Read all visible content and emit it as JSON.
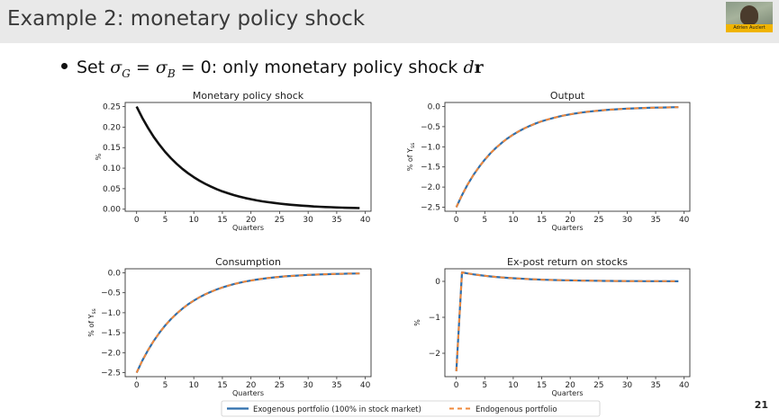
{
  "slide": {
    "title": "Example 2: monetary policy shock",
    "bullet": {
      "prefix": "Set ",
      "sym1": "σ",
      "sub1": "G",
      "eq1": " = ",
      "sym2": "σ",
      "sub2": "B",
      "eq2": " = 0: only monetary policy shock ",
      "d": "d",
      "r": "r"
    },
    "page_number": "21",
    "presenter_name": "Adrien Auclert"
  },
  "colors": {
    "shock_line": "#111111",
    "exogenous": "#2f6fad",
    "endogenous": "#f0883b",
    "title_bar": "#e9e9e9"
  },
  "legend": {
    "exogenous": "Exogenous portfolio (100% in stock market)",
    "endogenous": "Endogenous portfolio"
  },
  "chart_data": [
    {
      "type": "line",
      "title": "Monetary policy shock",
      "xlabel": "Quarters",
      "ylabel": "%",
      "xlim": [
        -2,
        41
      ],
      "ylim": [
        -0.005,
        0.26
      ],
      "xticks": [
        0,
        5,
        10,
        15,
        20,
        25,
        30,
        35,
        40
      ],
      "yticks": [
        0.0,
        0.05,
        0.1,
        0.15,
        0.2,
        0.25
      ],
      "ytick_labels": [
        "0.00",
        "0.05",
        "0.10",
        "0.15",
        "0.20",
        "0.25"
      ],
      "series": [
        {
          "role": "shock",
          "x": [
            0,
            1,
            2,
            3,
            4,
            5,
            6,
            7,
            8,
            9,
            10,
            11,
            12,
            13,
            14,
            15,
            16,
            17,
            18,
            19,
            20,
            21,
            22,
            23,
            24,
            25,
            26,
            27,
            28,
            29,
            30,
            31,
            32,
            33,
            34,
            35,
            36,
            37,
            38,
            39
          ],
          "values": [
            0.25,
            0.2225,
            0.198,
            0.1762,
            0.1569,
            0.1396,
            0.1242,
            0.1106,
            0.0984,
            0.0876,
            0.0779,
            0.0694,
            0.0617,
            0.0549,
            0.0489,
            0.0435,
            0.0387,
            0.0345,
            0.0307,
            0.0273,
            0.0243,
            0.0216,
            0.0192,
            0.0171,
            0.0153,
            0.0136,
            0.0121,
            0.0108,
            0.0096,
            0.0085,
            0.0076,
            0.0067,
            0.006,
            0.0053,
            0.0048,
            0.0042,
            0.0038,
            0.0033,
            0.003,
            0.0026
          ]
        }
      ]
    },
    {
      "type": "line",
      "title": "Output",
      "xlabel": "Quarters",
      "ylabel": "% of Y_ss",
      "xlim": [
        -2,
        41
      ],
      "ylim": [
        -2.6,
        0.1
      ],
      "xticks": [
        0,
        5,
        10,
        15,
        20,
        25,
        30,
        35,
        40
      ],
      "yticks": [
        0.0,
        -0.5,
        -1.0,
        -1.5,
        -2.0,
        -2.5
      ],
      "ytick_labels": [
        "0.0",
        "−0.5",
        "−1.0",
        "−1.5",
        "−2.0",
        "−2.5"
      ],
      "series": [
        {
          "name": "Exogenous portfolio (100% in stock market)",
          "x": [
            0,
            1,
            2,
            3,
            4,
            5,
            6,
            7,
            8,
            9,
            10,
            11,
            12,
            13,
            14,
            15,
            16,
            17,
            18,
            19,
            20,
            21,
            22,
            23,
            24,
            25,
            26,
            27,
            28,
            29,
            30,
            31,
            32,
            33,
            34,
            35,
            36,
            37,
            38,
            39
          ],
          "values": [
            -2.5,
            -2.2,
            -1.936,
            -1.704,
            -1.499,
            -1.319,
            -1.161,
            -1.022,
            -0.899,
            -0.791,
            -0.696,
            -0.613,
            -0.539,
            -0.475,
            -0.418,
            -0.367,
            -0.323,
            -0.285,
            -0.25,
            -0.22,
            -0.194,
            -0.171,
            -0.15,
            -0.132,
            -0.116,
            -0.102,
            -0.09,
            -0.079,
            -0.07,
            -0.061,
            -0.054,
            -0.048,
            -0.042,
            -0.037,
            -0.032,
            -0.028,
            -0.025,
            -0.022,
            -0.019,
            -0.017
          ]
        },
        {
          "name": "Endogenous portfolio",
          "x": [
            0,
            1,
            2,
            3,
            4,
            5,
            6,
            7,
            8,
            9,
            10,
            11,
            12,
            13,
            14,
            15,
            16,
            17,
            18,
            19,
            20,
            21,
            22,
            23,
            24,
            25,
            26,
            27,
            28,
            29,
            30,
            31,
            32,
            33,
            34,
            35,
            36,
            37,
            38,
            39
          ],
          "values": [
            -2.5,
            -2.2,
            -1.936,
            -1.704,
            -1.499,
            -1.319,
            -1.161,
            -1.022,
            -0.899,
            -0.791,
            -0.696,
            -0.613,
            -0.539,
            -0.475,
            -0.418,
            -0.367,
            -0.323,
            -0.285,
            -0.25,
            -0.22,
            -0.194,
            -0.171,
            -0.15,
            -0.132,
            -0.116,
            -0.102,
            -0.09,
            -0.079,
            -0.07,
            -0.061,
            -0.054,
            -0.048,
            -0.042,
            -0.037,
            -0.032,
            -0.028,
            -0.025,
            -0.022,
            -0.019,
            -0.017
          ]
        }
      ]
    },
    {
      "type": "line",
      "title": "Consumption",
      "xlabel": "Quarters",
      "ylabel": "% of Y_ss",
      "xlim": [
        -2,
        41
      ],
      "ylim": [
        -2.6,
        0.1
      ],
      "xticks": [
        0,
        5,
        10,
        15,
        20,
        25,
        30,
        35,
        40
      ],
      "yticks": [
        0.0,
        -0.5,
        -1.0,
        -1.5,
        -2.0,
        -2.5
      ],
      "ytick_labels": [
        "0.0",
        "−0.5",
        "−1.0",
        "−1.5",
        "−2.0",
        "−2.5"
      ],
      "series": [
        {
          "name": "Exogenous portfolio (100% in stock market)",
          "x": [
            0,
            1,
            2,
            3,
            4,
            5,
            6,
            7,
            8,
            9,
            10,
            11,
            12,
            13,
            14,
            15,
            16,
            17,
            18,
            19,
            20,
            21,
            22,
            23,
            24,
            25,
            26,
            27,
            28,
            29,
            30,
            31,
            32,
            33,
            34,
            35,
            36,
            37,
            38,
            39
          ],
          "values": [
            -2.5,
            -2.2,
            -1.936,
            -1.704,
            -1.499,
            -1.319,
            -1.161,
            -1.022,
            -0.899,
            -0.791,
            -0.696,
            -0.613,
            -0.539,
            -0.475,
            -0.418,
            -0.367,
            -0.323,
            -0.285,
            -0.25,
            -0.22,
            -0.194,
            -0.171,
            -0.15,
            -0.132,
            -0.116,
            -0.102,
            -0.09,
            -0.079,
            -0.07,
            -0.061,
            -0.054,
            -0.048,
            -0.042,
            -0.037,
            -0.032,
            -0.028,
            -0.025,
            -0.022,
            -0.019,
            -0.017
          ]
        },
        {
          "name": "Endogenous portfolio",
          "x": [
            0,
            1,
            2,
            3,
            4,
            5,
            6,
            7,
            8,
            9,
            10,
            11,
            12,
            13,
            14,
            15,
            16,
            17,
            18,
            19,
            20,
            21,
            22,
            23,
            24,
            25,
            26,
            27,
            28,
            29,
            30,
            31,
            32,
            33,
            34,
            35,
            36,
            37,
            38,
            39
          ],
          "values": [
            -2.5,
            -2.2,
            -1.936,
            -1.704,
            -1.499,
            -1.319,
            -1.161,
            -1.022,
            -0.899,
            -0.791,
            -0.696,
            -0.613,
            -0.539,
            -0.475,
            -0.418,
            -0.367,
            -0.323,
            -0.285,
            -0.25,
            -0.22,
            -0.194,
            -0.171,
            -0.15,
            -0.132,
            -0.116,
            -0.102,
            -0.09,
            -0.079,
            -0.07,
            -0.061,
            -0.054,
            -0.048,
            -0.042,
            -0.037,
            -0.032,
            -0.028,
            -0.025,
            -0.022,
            -0.019,
            -0.017
          ]
        }
      ]
    },
    {
      "type": "line",
      "title": "Ex-post return on stocks",
      "xlabel": "Quarters",
      "ylabel": "%",
      "xlim": [
        -2,
        41
      ],
      "ylim": [
        -2.65,
        0.35
      ],
      "xticks": [
        0,
        5,
        10,
        15,
        20,
        25,
        30,
        35,
        40
      ],
      "yticks": [
        0,
        -1,
        -2
      ],
      "ytick_labels": [
        "0",
        "−1",
        "−2"
      ],
      "series": [
        {
          "name": "Exogenous portfolio (100% in stock market)",
          "x": [
            0,
            1,
            2,
            3,
            4,
            5,
            6,
            7,
            8,
            9,
            10,
            11,
            12,
            13,
            14,
            15,
            16,
            17,
            18,
            19,
            20,
            21,
            22,
            23,
            24,
            25,
            26,
            27,
            28,
            29,
            30,
            31,
            32,
            33,
            34,
            35,
            36,
            37,
            38,
            39
          ],
          "values": [
            -2.5,
            0.25,
            0.22,
            0.196,
            0.174,
            0.155,
            0.138,
            0.123,
            0.109,
            0.097,
            0.087,
            0.077,
            0.069,
            0.061,
            0.054,
            0.048,
            0.043,
            0.038,
            0.034,
            0.03,
            0.027,
            0.024,
            0.021,
            0.019,
            0.017,
            0.015,
            0.013,
            0.012,
            0.011,
            0.009,
            0.008,
            0.007,
            0.007,
            0.006,
            0.005,
            0.005,
            0.004,
            0.004,
            0.003,
            0.003
          ]
        },
        {
          "name": "Endogenous portfolio",
          "x": [
            0,
            1,
            2,
            3,
            4,
            5,
            6,
            7,
            8,
            9,
            10,
            11,
            12,
            13,
            14,
            15,
            16,
            17,
            18,
            19,
            20,
            21,
            22,
            23,
            24,
            25,
            26,
            27,
            28,
            29,
            30,
            31,
            32,
            33,
            34,
            35,
            36,
            37,
            38,
            39
          ],
          "values": [
            -2.5,
            0.25,
            0.22,
            0.196,
            0.174,
            0.155,
            0.138,
            0.123,
            0.109,
            0.097,
            0.087,
            0.077,
            0.069,
            0.061,
            0.054,
            0.048,
            0.043,
            0.038,
            0.034,
            0.03,
            0.027,
            0.024,
            0.021,
            0.019,
            0.017,
            0.015,
            0.013,
            0.012,
            0.011,
            0.009,
            0.008,
            0.007,
            0.007,
            0.006,
            0.005,
            0.005,
            0.004,
            0.004,
            0.003,
            0.003
          ]
        }
      ]
    }
  ]
}
